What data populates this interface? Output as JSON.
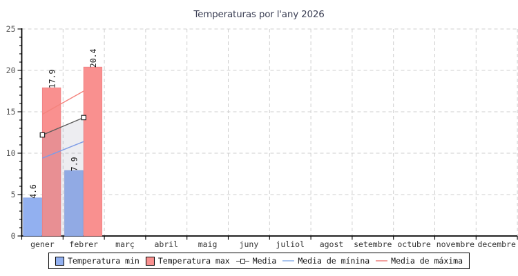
{
  "chart_data": {
    "type": "bar",
    "title": "Temperaturas por l'any 2026",
    "categories": [
      "gener",
      "febrer",
      "març",
      "abril",
      "maig",
      "juny",
      "juliol",
      "agost",
      "setembre",
      "octubre",
      "novembre",
      "decembre"
    ],
    "ylim": [
      0,
      25
    ],
    "yticks": [
      0,
      5,
      10,
      15,
      20,
      25
    ],
    "grid": "dashed",
    "legend_position": "bottom",
    "background": "#ffffff",
    "title_color": "#3d4156",
    "series": [
      {
        "name": "Temperatura min",
        "type": "bar",
        "color": "#92b0f0",
        "border_color": "#7d9be0",
        "values": [
          4.6,
          7.9
        ],
        "labels": [
          "4.6",
          "7.9"
        ]
      },
      {
        "name": "Temperatura max",
        "type": "bar",
        "color": "#f9908f",
        "border_color": "#ef7f82",
        "values": [
          17.9,
          20.4
        ],
        "labels": [
          "17.9",
          "20.4"
        ]
      },
      {
        "name": "Media",
        "type": "line",
        "marker": "square",
        "color": "#5c5c5c",
        "area_color": "rgba(145,145,165,0.16)",
        "legend_color": "#3a3a3a",
        "values": [
          12.2,
          14.3
        ]
      },
      {
        "name": "Media de mínina",
        "type": "line",
        "color": "#7e9ce6",
        "legend_color": "#a9c4ee",
        "values": [
          9.4,
          11.4
        ]
      },
      {
        "name": "Media de máxima",
        "type": "line",
        "color": "#f4837d",
        "legend_color": "#f2a09e",
        "values": [
          14.7,
          17.5
        ]
      }
    ]
  }
}
